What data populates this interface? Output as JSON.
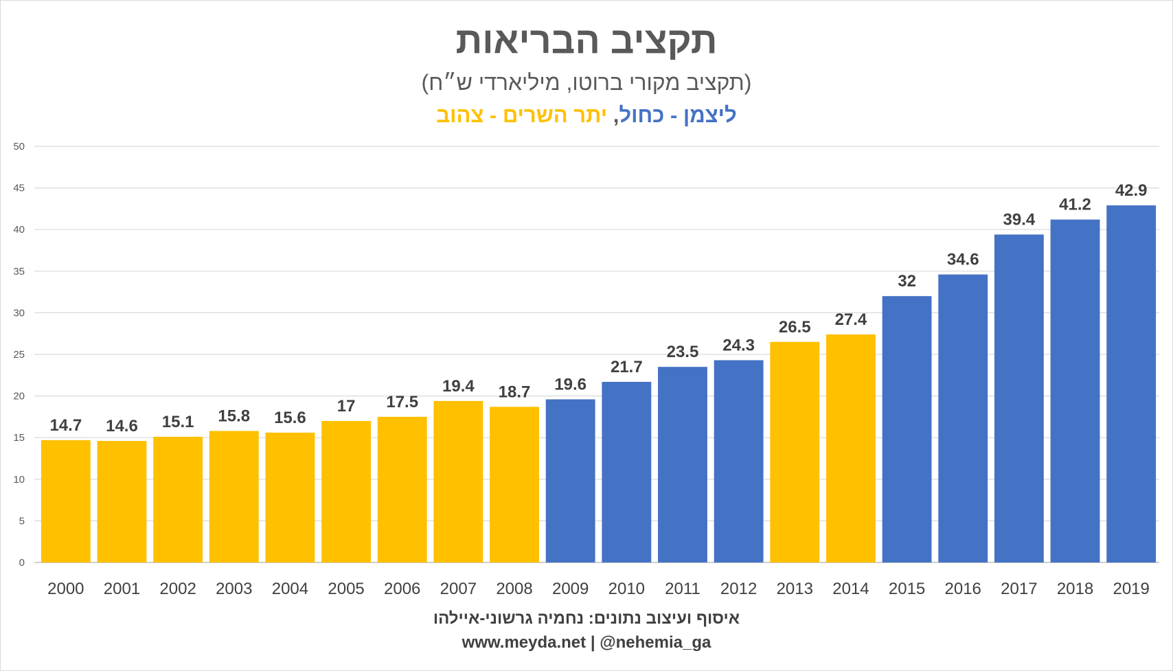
{
  "chart_data": {
    "type": "bar",
    "title": "תקציב הבריאות",
    "subtitle": "(תקציב מקורי ברוטו, מיליארדי ש״ח)",
    "legend": [
      {
        "label": "ליצמן - כחול",
        "color": "#4472c4"
      },
      {
        "label": "יתר השרים - צהוב",
        "color": "#ffc000"
      }
    ],
    "legend_separator": ", ",
    "categories": [
      "2000",
      "2001",
      "2002",
      "2003",
      "2004",
      "2005",
      "2006",
      "2007",
      "2008",
      "2009",
      "2010",
      "2011",
      "2012",
      "2013",
      "2014",
      "2015",
      "2016",
      "2017",
      "2018",
      "2019"
    ],
    "values": [
      14.7,
      14.6,
      15.1,
      15.8,
      15.6,
      17,
      17.5,
      19.4,
      18.7,
      19.6,
      21.7,
      23.5,
      24.3,
      26.5,
      27.4,
      32,
      34.6,
      39.4,
      41.2,
      42.9
    ],
    "value_labels": [
      "14.7",
      "14.6",
      "15.1",
      "15.8",
      "15.6",
      "17",
      "17.5",
      "19.4",
      "18.7",
      "19.6",
      "21.7",
      "23.5",
      "24.3",
      "26.5",
      "27.4",
      "32",
      "34.6",
      "39.4",
      "41.2",
      "42.9"
    ],
    "bar_colors": [
      "#ffc000",
      "#ffc000",
      "#ffc000",
      "#ffc000",
      "#ffc000",
      "#ffc000",
      "#ffc000",
      "#ffc000",
      "#ffc000",
      "#4472c4",
      "#4472c4",
      "#4472c4",
      "#4472c4",
      "#ffc000",
      "#ffc000",
      "#4472c4",
      "#4472c4",
      "#4472c4",
      "#4472c4",
      "#4472c4"
    ],
    "ylim": [
      0,
      50
    ],
    "yticks": [
      0,
      5,
      10,
      15,
      20,
      25,
      30,
      35,
      40,
      45,
      50
    ],
    "grid": true,
    "xlabel": "",
    "ylabel": ""
  },
  "credits": {
    "line1": "איסוף ועיצוב נתונים: נחמיה גרשוני-איילהו",
    "line2": "www.meyda.net | @nehemia_ga"
  },
  "colors": {
    "gridline": "#d9d9d9",
    "axis": "#bfbfbf",
    "text": "#595959"
  }
}
